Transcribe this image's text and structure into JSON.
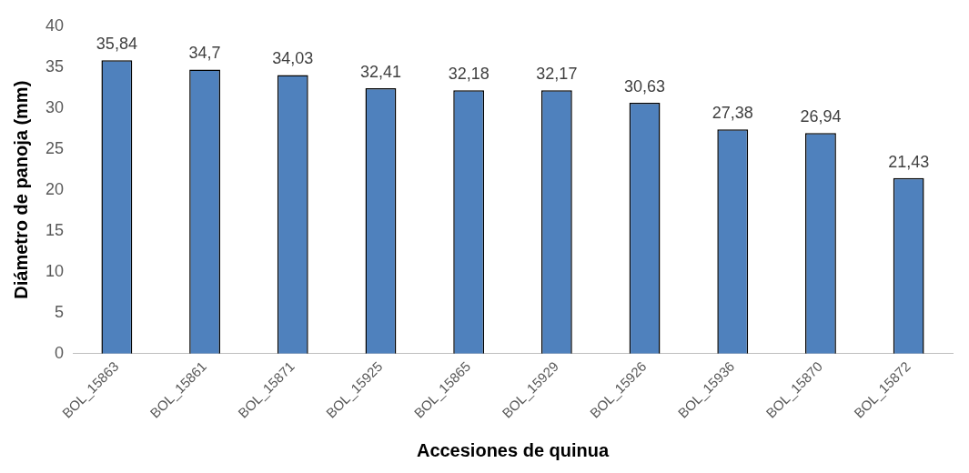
{
  "chart_data": {
    "type": "bar",
    "xlabel": "Accesiones de quinua",
    "ylabel": "Diámetro de panoja (mm)",
    "categories": [
      "BOL_15863",
      "BOL_15861",
      "BOL_15871",
      "BOL_15925",
      "BOL_15865",
      "BOL_15929",
      "BOL_15926",
      "BOL_15936",
      "BOL_15870",
      "BOL_15872"
    ],
    "values": [
      35.84,
      34.7,
      34.03,
      32.41,
      32.18,
      32.17,
      30.63,
      27.38,
      26.94,
      21.43
    ],
    "value_labels": [
      "35,84",
      "34,7",
      "34,03",
      "32,41",
      "32,18",
      "32,17",
      "30,63",
      "27,38",
      "26,94",
      "21,43"
    ],
    "color": "#4f81bd",
    "ylim": [
      0,
      40
    ],
    "yticks": [
      0,
      5,
      10,
      15,
      20,
      25,
      30,
      35,
      40
    ],
    "grid": false,
    "legend": false
  }
}
